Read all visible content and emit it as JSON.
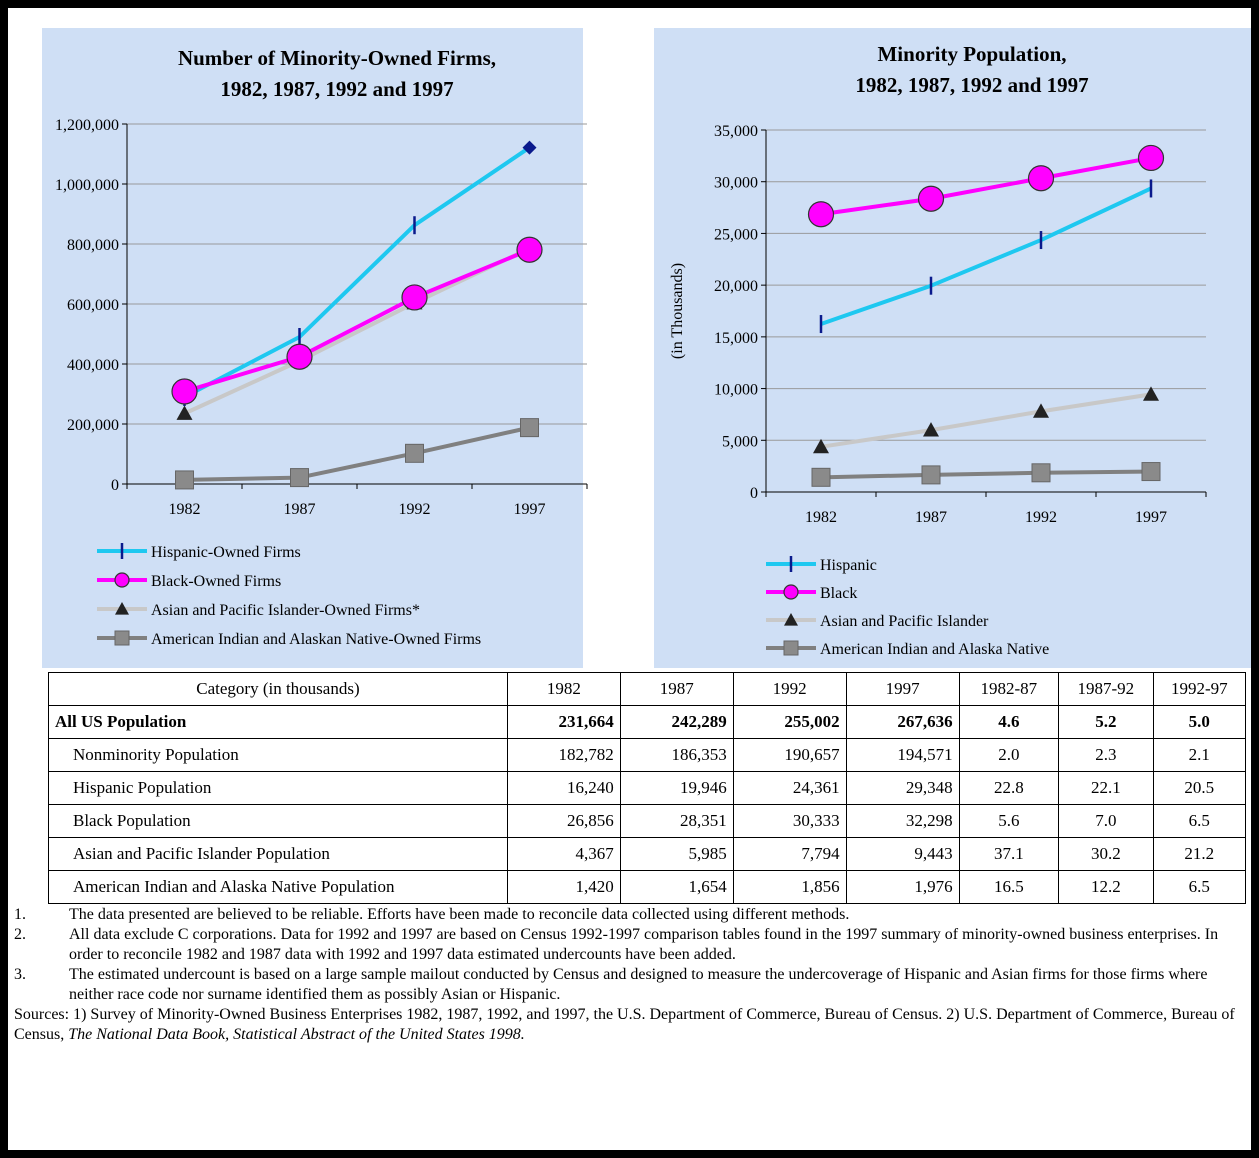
{
  "chart_data": [
    {
      "type": "line",
      "title": "Number of Minority-Owned Firms,",
      "subtitle": "1982, 1987, 1992 and 1997",
      "xlabel": "",
      "ylabel": "",
      "categories": [
        "1982",
        "1987",
        "1992",
        "1997"
      ],
      "ylim": [
        0,
        1200000
      ],
      "yticks": [
        "0",
        "200,000",
        "400,000",
        "600,000",
        "800,000",
        "1,000,000",
        "1,200,000"
      ],
      "grid": true,
      "legend_position": "bottom",
      "series": [
        {
          "name": "Hispanic-Owned Firms",
          "values": [
            290000,
            490000,
            862605,
            1121433
          ],
          "color": "#1ec8f0",
          "marker": "dash"
        },
        {
          "name": "Black-Owned Firms",
          "values": [
            308260,
            424165,
            621834,
            780770
          ],
          "color": "#ff00ff",
          "marker": "circle"
        },
        {
          "name": "Asian and Pacific Islander-Owned Firms*",
          "values": [
            235000,
            410000,
            603426,
            785480
          ],
          "color": "#c8c8c8",
          "marker": "triangle"
        },
        {
          "name": "American Indian and Alaskan Native-Owned Firms",
          "values": [
            13573,
            21380,
            102271,
            187921
          ],
          "color": "#808080",
          "marker": "square"
        }
      ]
    },
    {
      "type": "line",
      "title": "Minority Population,",
      "subtitle": "1982, 1987, 1992 and 1997",
      "xlabel": "",
      "ylabel": "(in Thousands)",
      "categories": [
        "1982",
        "1987",
        "1992",
        "1997"
      ],
      "ylim": [
        0,
        35000
      ],
      "yticks": [
        "0",
        "5,000",
        "10,000",
        "15,000",
        "20,000",
        "25,000",
        "30,000",
        "35,000"
      ],
      "grid": true,
      "legend_position": "bottom",
      "series": [
        {
          "name": "Hispanic",
          "values": [
            16240,
            19946,
            24361,
            29348
          ],
          "color": "#1ec8f0",
          "marker": "dash"
        },
        {
          "name": "Black",
          "values": [
            26856,
            28351,
            30333,
            32298
          ],
          "color": "#ff00ff",
          "marker": "circle"
        },
        {
          "name": "Asian and Pacific Islander",
          "values": [
            4367,
            5985,
            7794,
            9443
          ],
          "color": "#c8c8c8",
          "marker": "triangle"
        },
        {
          "name": "American Indian and Alaska Native",
          "values": [
            1420,
            1654,
            1856,
            1976
          ],
          "color": "#808080",
          "marker": "square"
        }
      ]
    }
  ],
  "table": {
    "headers": [
      "Category (in thousands)",
      "1982",
      "1987",
      "1992",
      "1997",
      "1982-87",
      "1987-92",
      "1992-97"
    ],
    "rows": [
      [
        "All US Population",
        "231,664",
        "242,289",
        "255,002",
        "267,636",
        "4.6",
        "5.2",
        "5.0"
      ],
      [
        "Nonminority Population",
        "182,782",
        "186,353",
        "190,657",
        "194,571",
        "2.0",
        "2.3",
        "2.1"
      ],
      [
        "Hispanic Population",
        "16,240",
        "19,946",
        "24,361",
        "29,348",
        "22.8",
        "22.1",
        "20.5"
      ],
      [
        "Black Population",
        "26,856",
        "28,351",
        "30,333",
        "32,298",
        "5.6",
        "7.0",
        "6.5"
      ],
      [
        "Asian and Pacific Islander Population",
        "4,367",
        "5,985",
        "7,794",
        "9,443",
        "37.1",
        "30.2",
        "21.2"
      ],
      [
        "American Indian and Alaska Native Population",
        "1,420",
        "1,654",
        "1,856",
        "1,976",
        "16.5",
        "12.2",
        "6.5"
      ]
    ]
  },
  "notes": [
    {
      "num": "1.",
      "text": "The data presented are believed to be reliable. Efforts have been made to reconcile data collected using different methods."
    },
    {
      "num": "2.",
      "text": "All data exclude C corporations. Data for 1992 and 1997 are based on Census 1992-1997 comparison tables found in the 1997 summary of minority-owned business enterprises. In order to reconcile 1982 and 1987 data with 1992 and 1997 data estimated undercounts have been added."
    },
    {
      "num": "3.",
      "text": "The estimated undercount is based on a large sample mailout conducted by Census and designed to measure the undercoverage of Hispanic and Asian firms for those firms where neither race code nor surname identified them as possibly Asian or Hispanic."
    }
  ],
  "sources": {
    "text": "Sources: 1) Survey of Minority-Owned Business Enterprises 1982, 1987, 1992, and 1997, the U.S. Department of Commerce, Bureau of Census. 2) U.S. Department of Commerce, Bureau of Census, ",
    "italic": "The National Data Book, Statistical Abstract of the United States 1998."
  }
}
